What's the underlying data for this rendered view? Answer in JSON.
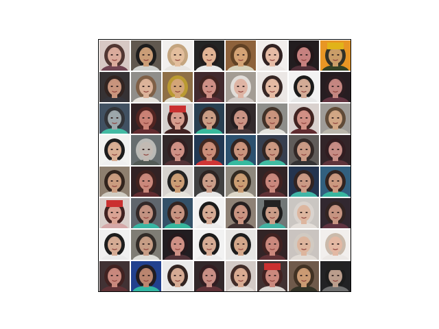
{
  "figure": {
    "grid_rows": 8,
    "grid_cols": 8,
    "border_color": "#000000",
    "background_color": "#ffffff"
  },
  "tiles": [
    {
      "bg": "#d6c6c2",
      "skin": "#d9a898",
      "hair": "#4a2e2a",
      "shirt": "#6b3c4a",
      "hat": ""
    },
    {
      "bg": "#5a5248",
      "skin": "#c89a72",
      "hair": "#141414",
      "shirt": "#cfd0cc",
      "hat": ""
    },
    {
      "bg": "#f2f0ee",
      "skin": "#e2bc9a",
      "hair": "#c2a27a",
      "shirt": "#e8e4e0",
      "hat": ""
    },
    {
      "bg": "#1c1c1c",
      "skin": "#e0b090",
      "hair": "#1a1414",
      "shirt": "#e9e9e9",
      "hat": ""
    },
    {
      "bg": "#8a5c34",
      "skin": "#d3a070",
      "hair": "#5a3a1c",
      "shirt": "#d7d0b8",
      "hat": ""
    },
    {
      "bg": "#f2eeec",
      "skin": "#e5b9a2",
      "hair": "#2a1a1a",
      "shirt": "#ede8e4",
      "hat": ""
    },
    {
      "bg": "#1a1416",
      "skin": "#c47c7a",
      "hair": "#1a0e10",
      "shirt": "#4a2830",
      "hat": ""
    },
    {
      "bg": "#e8921c",
      "skin": "#c89a62",
      "hair": "#2a2a20",
      "shirt": "#2c3a1c",
      "hat": "#e0b010"
    },
    {
      "bg": "#2e2a2c",
      "skin": "#c69078",
      "hair": "#2a1c18",
      "shirt": "#2c2c34",
      "hat": ""
    },
    {
      "bg": "#8c8a86",
      "skin": "#dbb096",
      "hair": "#7a5a40",
      "shirt": "#e6e2dc",
      "hat": ""
    },
    {
      "bg": "#8a6a40",
      "skin": "#d2a272",
      "hair": "#b8962a",
      "shirt": "#e2e0d4",
      "hat": ""
    },
    {
      "bg": "#3a2226",
      "skin": "#cc8b80",
      "hair": "#3a1c18",
      "shirt": "#5a2830",
      "hat": ""
    },
    {
      "bg": "#a09890",
      "skin": "#ddb0a0",
      "hair": "#e0dcd8",
      "shirt": "#cfc6c2",
      "hat": ""
    },
    {
      "bg": "#ebe6e4",
      "skin": "#e4b8a0",
      "hair": "#2e1e1c",
      "shirt": "#e8e2de",
      "hat": ""
    },
    {
      "bg": "#f2f2f2",
      "skin": "#d2a892",
      "hair": "#121212",
      "shirt": "#e8e8e8",
      "hat": ""
    },
    {
      "bg": "#1e1418",
      "skin": "#c2827c",
      "hair": "#241418",
      "shirt": "#5c2c3a",
      "hat": ""
    },
    {
      "bg": "#3a4a5c",
      "skin": "#9aa4a8",
      "hair": "#2a2c30",
      "shirt": "#3cb8a0",
      "hat": ""
    },
    {
      "bg": "#2a1a1c",
      "skin": "#c87c70",
      "hair": "#4a1c18",
      "shirt": "#5c2428",
      "hat": ""
    },
    {
      "bg": "#d4d0ce",
      "skin": "#d49a8a",
      "hair": "#3a1a18",
      "shirt": "#3a1a1a",
      "hat": "#c82828"
    },
    {
      "bg": "#20384a",
      "skin": "#c89a80",
      "hair": "#2a1c1a",
      "shirt": "#2fb89a",
      "hat": ""
    },
    {
      "bg": "#2a2224",
      "skin": "#c89080",
      "hair": "#1e1416",
      "shirt": "#3c2c2e",
      "hat": ""
    },
    {
      "bg": "#8a8a86",
      "skin": "#c89078",
      "hair": "#3a2a20",
      "shirt": "#e2e2dc",
      "hat": ""
    },
    {
      "bg": "#d8d0cc",
      "skin": "#d08c80",
      "hair": "#3a1c18",
      "shirt": "#5a2428",
      "hat": ""
    },
    {
      "bg": "#9c9894",
      "skin": "#d0a480",
      "hair": "#5a4430",
      "shirt": "#b8b4a8",
      "hat": ""
    },
    {
      "bg": "#f2f2f0",
      "skin": "#d8ac90",
      "hair": "#141414",
      "shirt": "#efefef",
      "hat": ""
    },
    {
      "bg": "#60686a",
      "skin": "#c0b8b0",
      "hair": "#b8b8b4",
      "shirt": "#4c5450",
      "hat": ""
    },
    {
      "bg": "#2a2022",
      "skin": "#cc8c80",
      "hair": "#2a1618",
      "shirt": "#4c2a2e",
      "hat": ""
    },
    {
      "bg": "#18304c",
      "skin": "#c88a74",
      "hair": "#3a2018",
      "shirt": "#cc2e2e",
      "hat": ""
    },
    {
      "bg": "#244a6a",
      "skin": "#c89078",
      "hair": "#2a1c18",
      "shirt": "#2fb89c",
      "hat": ""
    },
    {
      "bg": "#2e3848",
      "skin": "#c8947c",
      "hair": "#2a1e1a",
      "shirt": "#3abaa0",
      "hat": ""
    },
    {
      "bg": "#5a5654",
      "skin": "#c89680",
      "hair": "#2a201e",
      "shirt": "#2c2a2c",
      "hat": ""
    },
    {
      "bg": "#2a1c20",
      "skin": "#c48880",
      "hair": "#2a1418",
      "shirt": "#5a2c34",
      "hat": ""
    },
    {
      "bg": "#8a7a6a",
      "skin": "#c8987a",
      "hair": "#2a1c14",
      "shirt": "#cfcac0",
      "hat": ""
    },
    {
      "bg": "#2a1a1c",
      "skin": "#c88476",
      "hair": "#3a1a16",
      "shirt": "#5a2428",
      "hat": ""
    },
    {
      "bg": "#d6d2ce",
      "skin": "#c89a70",
      "hair": "#1a1a1a",
      "shirt": "#e4e2da",
      "hat": ""
    },
    {
      "bg": "#3a3a3a",
      "skin": "#c89a84",
      "hair": "#241c1a",
      "shirt": "#e6e6e6",
      "hat": ""
    },
    {
      "bg": "#8a8478",
      "skin": "#c89a6e",
      "hair": "#2a2218",
      "shirt": "#dcd6c6",
      "hat": ""
    },
    {
      "bg": "#2a1c1e",
      "skin": "#c88478",
      "hair": "#3a1a18",
      "shirt": "#5a2a2e",
      "hat": ""
    },
    {
      "bg": "#1c2c48",
      "skin": "#c89680",
      "hair": "#2a1c1a",
      "shirt": "#3ab4a4",
      "hat": ""
    },
    {
      "bg": "#2a5a7a",
      "skin": "#c8947a",
      "hair": "#2a1c18",
      "shirt": "#30b49c",
      "hat": ""
    },
    {
      "bg": "#d8ccc8",
      "skin": "#d8a090",
      "hair": "#3a1a18",
      "shirt": "#d4a4a4",
      "hat": "#c82828"
    },
    {
      "bg": "#5a6068",
      "skin": "#c08e7c",
      "hair": "#2a2020",
      "shirt": "#30b4a0",
      "hat": ""
    },
    {
      "bg": "#2c4a62",
      "skin": "#c4907c",
      "hair": "#2a1c18",
      "shirt": "#30b49a",
      "hat": ""
    },
    {
      "bg": "#f2f2f2",
      "skin": "#d4a890",
      "hair": "#121212",
      "shirt": "#ececec",
      "hat": ""
    },
    {
      "bg": "#8a7c70",
      "skin": "#c8907c",
      "hair": "#1e1616",
      "shirt": "#3a2a2a",
      "hat": ""
    },
    {
      "bg": "#6c7272",
      "skin": "#c89a84",
      "hair": "#141414",
      "shirt": "#3ab0a0",
      "hat": "#1a1a1a"
    },
    {
      "bg": "#c8c4c0",
      "skin": "#dcb49c",
      "hair": "#d8d2cc",
      "shirt": "#e2ddd8",
      "hat": ""
    },
    {
      "bg": "#2a2028",
      "skin": "#c4907c",
      "hair": "#2a1c1a",
      "shirt": "#5a2c3a",
      "hat": ""
    },
    {
      "bg": "#f0f0f0",
      "skin": "#d4a890",
      "hair": "#141414",
      "shirt": "#eaeaea",
      "hat": ""
    },
    {
      "bg": "#7a7870",
      "skin": "#c49a80",
      "hair": "#2a2420",
      "shirt": "#dcdcd6",
      "hat": ""
    },
    {
      "bg": "#1a1418",
      "skin": "#cc8c80",
      "hair": "#1e1014",
      "shirt": "#4a2a30",
      "hat": ""
    },
    {
      "bg": "#f2f2f2",
      "skin": "#d4a890",
      "hair": "#121212",
      "shirt": "#ececec",
      "hat": ""
    },
    {
      "bg": "#e6e4e2",
      "skin": "#d2a486",
      "hair": "#141414",
      "shirt": "#e6e6e6",
      "hat": ""
    },
    {
      "bg": "#2a1c1e",
      "skin": "#c88478",
      "hair": "#3a1a18",
      "shirt": "#5a2a2e",
      "hat": ""
    },
    {
      "bg": "#c8c2be",
      "skin": "#dcb29a",
      "hair": "#d0c8c0",
      "shirt": "#e0dad4",
      "hat": ""
    },
    {
      "bg": "#f2efed",
      "skin": "#e2b6a0",
      "hair": "#c8b8a8",
      "shirt": "#ece8e4",
      "hat": ""
    },
    {
      "bg": "#3a2a2c",
      "skin": "#c68478",
      "hair": "#3a1a18",
      "shirt": "#5a2a2e",
      "hat": ""
    },
    {
      "bg": "#1a3a8a",
      "skin": "#b8806a",
      "hair": "#1a1418",
      "shirt": "#2ab4a0",
      "hat": ""
    },
    {
      "bg": "#eaeaea",
      "skin": "#d4a890",
      "hair": "#2a1c18",
      "shirt": "#e6e6e6",
      "hat": ""
    },
    {
      "bg": "#2a2022",
      "skin": "#c68a80",
      "hair": "#2a1418",
      "shirt": "#5a2a30",
      "hat": ""
    },
    {
      "bg": "#d2c8c4",
      "skin": "#d8a88e",
      "hair": "#3a2420",
      "shirt": "#e2dcd8",
      "hat": ""
    },
    {
      "bg": "#3a2a2a",
      "skin": "#c88478",
      "hair": "#3a1a18",
      "shirt": "#d8d4d0",
      "hat": "#c82828"
    },
    {
      "bg": "#6a5444",
      "skin": "#c8966e",
      "hair": "#3a2a1c",
      "shirt": "#2a2a1e",
      "hat": ""
    },
    {
      "bg": "#1a1a1c",
      "skin": "#b89a88",
      "hair": "#141414",
      "shirt": "#6a6a6a",
      "hat": "#1a1a1a"
    }
  ]
}
